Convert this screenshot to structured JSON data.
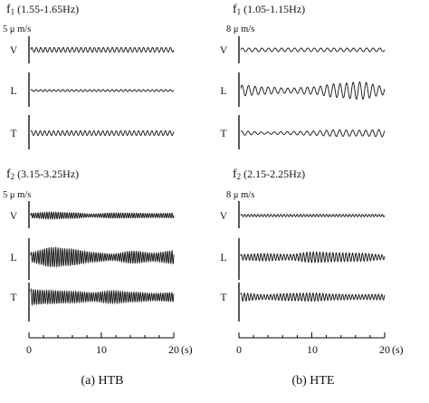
{
  "chart_data": {
    "type": "line",
    "x_unit": "(s)",
    "x_ticks": [
      "0",
      "10",
      "20"
    ],
    "columns": [
      {
        "caption": "(a) HTB",
        "panels": [
          {
            "band_symbol": "f",
            "band_sub": "1",
            "band_range": "(1.55-1.65Hz)",
            "scale": "5 μ m/s",
            "traces": [
              {
                "component": "V",
                "freq_hz": 1.6,
                "envelope": [
                  0.32,
                  0.32,
                  0.32,
                  0.32,
                  0.32
                ]
              },
              {
                "component": "L",
                "freq_hz": 1.6,
                "envelope": [
                  0.14,
                  0.14,
                  0.14,
                  0.14,
                  0.14
                ]
              },
              {
                "component": "T",
                "freq_hz": 1.6,
                "envelope": [
                  0.32,
                  0.32,
                  0.32,
                  0.32,
                  0.32
                ]
              }
            ]
          },
          {
            "band_symbol": "f",
            "band_sub": "2",
            "band_range": "(3.15-3.25Hz)",
            "scale": "5 μ m/s",
            "traces": [
              {
                "component": "V",
                "freq_hz": 3.2,
                "envelope": [
                  0.3,
                  0.42,
                  0.35,
                  0.2,
                  0.32,
                  0.3,
                  0.25,
                  0.3
                ]
              },
              {
                "component": "L",
                "freq_hz": 3.2,
                "envelope": [
                  0.6,
                  1.2,
                  1.0,
                  0.6,
                  0.4,
                  0.75,
                  0.5,
                  0.8
                ]
              },
              {
                "component": "T",
                "freq_hz": 3.2,
                "envelope": [
                  0.95,
                  0.8,
                  0.7,
                  0.55,
                  0.75,
                  0.6,
                  0.45,
                  0.55
                ]
              }
            ]
          }
        ]
      },
      {
        "caption": "(b) HTE",
        "panels": [
          {
            "band_symbol": "f",
            "band_sub": "1",
            "band_range": "(1.05-1.15Hz)",
            "scale": "8 μ m/s",
            "traces": [
              {
                "component": "V",
                "freq_hz": 1.1,
                "envelope": [
                  0.25,
                  0.25,
                  0.25,
                  0.25,
                  0.25
                ]
              },
              {
                "component": "L",
                "freq_hz": 1.1,
                "envelope": [
                  0.75,
                  0.5,
                  0.35,
                  0.5,
                  0.95,
                  1.2,
                  0.6
                ]
              },
              {
                "component": "T",
                "freq_hz": 1.1,
                "envelope": [
                  0.3,
                  0.15,
                  0.22,
                  0.3,
                  0.45,
                  0.4,
                  0.5
                ]
              }
            ]
          },
          {
            "band_symbol": "f",
            "band_sub": "2",
            "band_range": "(2.15-2.25Hz)",
            "scale": "8 μ m/s",
            "traces": [
              {
                "component": "V",
                "freq_hz": 2.2,
                "envelope": [
                  0.15,
                  0.15,
                  0.15,
                  0.15,
                  0.15
                ]
              },
              {
                "component": "L",
                "freq_hz": 2.2,
                "envelope": [
                  0.35,
                  0.45,
                  0.35,
                  0.65,
                  0.55,
                  0.5,
                  0.3
                ]
              },
              {
                "component": "T",
                "freq_hz": 2.2,
                "envelope": [
                  0.5,
                  0.3,
                  0.45,
                  0.5,
                  0.35,
                  0.3,
                  0.35
                ]
              }
            ]
          }
        ]
      }
    ]
  }
}
